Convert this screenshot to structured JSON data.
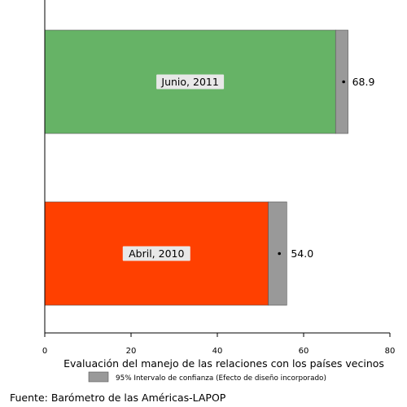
{
  "chart_data": {
    "type": "bar",
    "orientation": "horizontal",
    "categories": [
      "Junio, 2011",
      "Abril, 2010"
    ],
    "values": [
      68.9,
      54.0
    ],
    "value_labels": [
      "68.9",
      "54.0"
    ],
    "ci_low": [
      67.4,
      51.8
    ],
    "ci_high": [
      70.3,
      56.1
    ],
    "bar_colors": [
      "#66b366",
      "#ff4000"
    ],
    "ci_color": "#999999",
    "xlabel": "Evaluación del manejo de las relaciones con los países vecinos",
    "xlim": [
      0,
      80
    ],
    "xticks": [
      0,
      20,
      40,
      60,
      80
    ],
    "grid": false,
    "legend": {
      "position": "bottom",
      "entries": [
        {
          "label": "95% Intervalo de confianza (Efecto de diseño incorporado)",
          "color": "#999999"
        }
      ]
    }
  },
  "footer": {
    "source": "Fuente: Barómetro de las Américas-LAPOP"
  }
}
